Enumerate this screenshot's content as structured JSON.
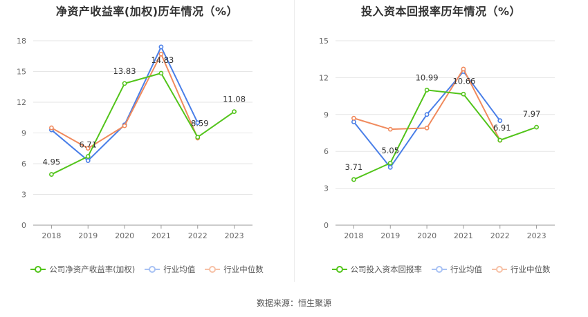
{
  "source_label": "数据来源：恒生聚源",
  "chart_data": [
    {
      "type": "line",
      "title": "净资产收益率(加权)历年情况（%）",
      "categories": [
        "2018",
        "2019",
        "2020",
        "2021",
        "2022",
        "2023"
      ],
      "ylim": [
        0,
        18
      ],
      "yticks": [
        0,
        3,
        6,
        9,
        12,
        15,
        18
      ],
      "grid": true,
      "legend_position": "bottom",
      "series": [
        {
          "name": "公司净资产收益率(加权)",
          "color": "#52c41a",
          "values": [
            4.95,
            6.71,
            13.83,
            14.83,
            8.59,
            11.08
          ],
          "labels": [
            "4.95",
            "6.71",
            "13.83",
            "14.83",
            "8.59",
            "11.08"
          ]
        },
        {
          "name": "行业均值",
          "color": "#4a7fe8",
          "values": [
            9.3,
            6.3,
            9.8,
            17.4,
            10.0,
            null
          ]
        },
        {
          "name": "行业中位数",
          "color": "#f08a5d",
          "values": [
            9.5,
            7.5,
            9.7,
            16.7,
            8.5,
            null
          ]
        }
      ]
    },
    {
      "type": "line",
      "title": "投入资本回报率历年情况（%）",
      "categories": [
        "2018",
        "2019",
        "2020",
        "2021",
        "2022",
        "2023"
      ],
      "ylim": [
        0,
        15
      ],
      "yticks": [
        0,
        3,
        6,
        9,
        12,
        15
      ],
      "grid": true,
      "legend_position": "bottom",
      "series": [
        {
          "name": "公司投入资本回报率",
          "color": "#52c41a",
          "values": [
            3.71,
            5.05,
            10.99,
            10.66,
            6.91,
            7.97
          ],
          "labels": [
            "3.71",
            "5.05",
            "10.99",
            "10.66",
            "6.91",
            "7.97"
          ]
        },
        {
          "name": "行业均值",
          "color": "#4a7fe8",
          "values": [
            8.4,
            4.7,
            9.0,
            12.5,
            8.5,
            null
          ]
        },
        {
          "name": "行业中位数",
          "color": "#f08a5d",
          "values": [
            8.7,
            7.8,
            7.9,
            12.7,
            6.9,
            null
          ]
        }
      ]
    }
  ]
}
